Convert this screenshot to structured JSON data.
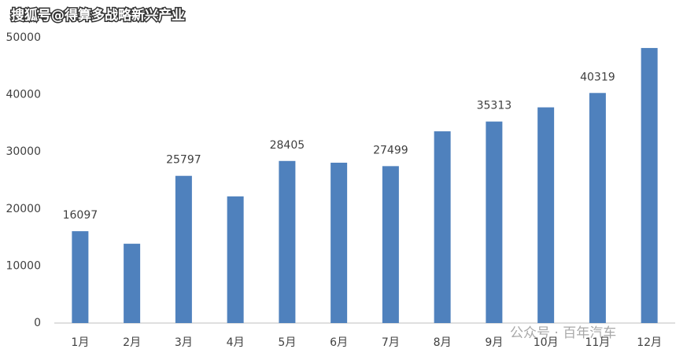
{
  "chart_data": {
    "type": "bar",
    "annotations": [
      "搜狐号@得算多战略新兴产业",
      "公众号 · 百年汽车"
    ],
    "categories": [
      "1月",
      "2月",
      "3月",
      "4月",
      "5月",
      "6月",
      "7月",
      "8月",
      "9月",
      "10月",
      "11月",
      "12月"
    ],
    "values": [
      16097,
      13900,
      25797,
      22200,
      28405,
      28100,
      27499,
      33600,
      35313,
      37800,
      40319,
      48200
    ],
    "value_labels": [
      "16097",
      null,
      "25797",
      null,
      "28405",
      null,
      "27499",
      null,
      "35313",
      null,
      "40319",
      null
    ],
    "color": "#4f81bd",
    "ylim": [
      0,
      50000
    ],
    "yticks": [
      0,
      10000,
      20000,
      30000,
      40000,
      50000
    ],
    "grid": false
  }
}
